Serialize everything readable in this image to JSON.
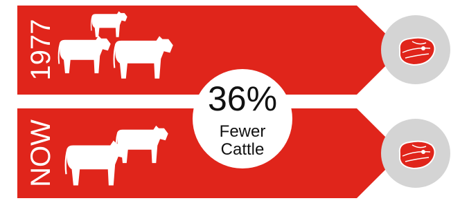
{
  "rows": [
    {
      "label": "1977"
    },
    {
      "label": "NOW"
    }
  ],
  "callout": {
    "value": "36%",
    "lines": [
      "Fewer",
      "Cattle"
    ]
  }
}
